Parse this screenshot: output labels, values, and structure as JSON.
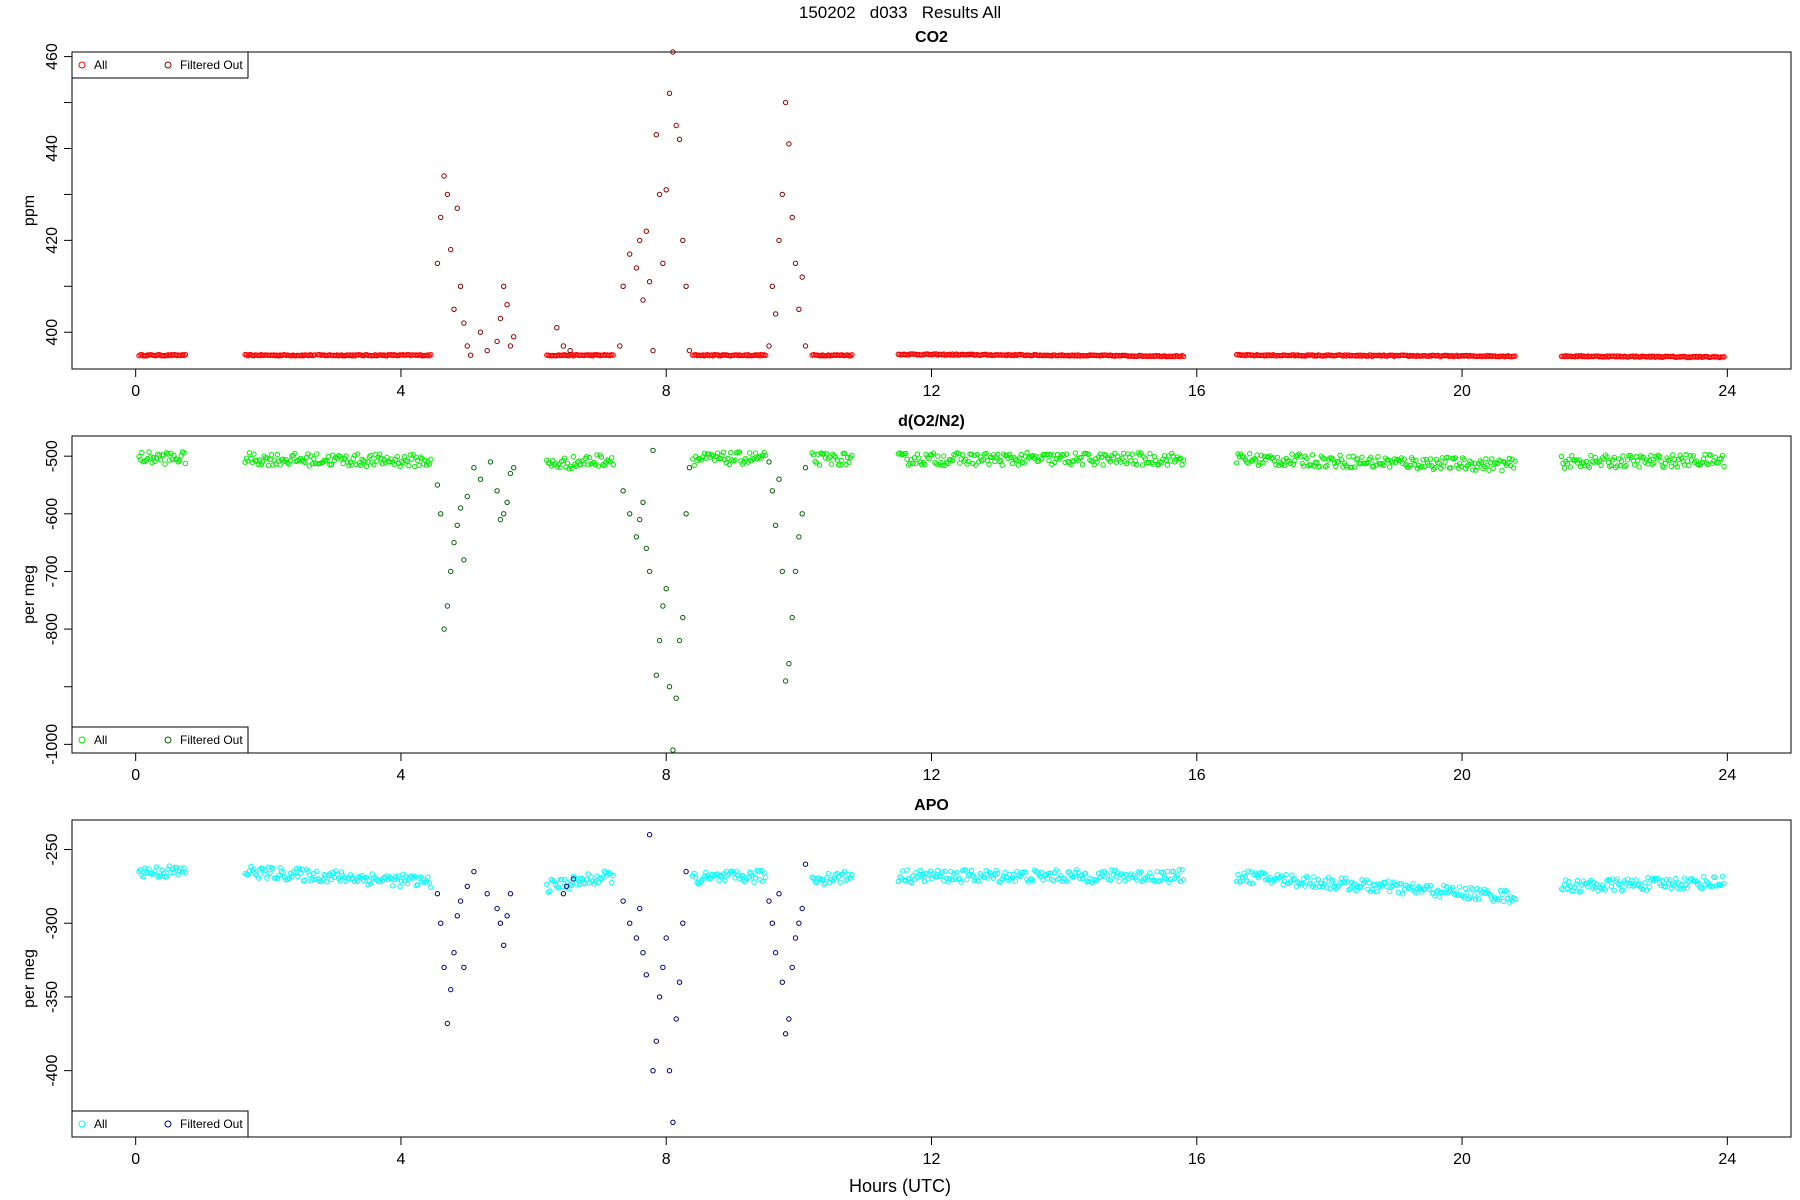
{
  "page_title": "150202   d033   Results All",
  "x_axis_label": "Hours (UTC)",
  "chart_data": [
    {
      "type": "scatter",
      "title": "CO2",
      "ylabel": "ppm",
      "xlabel": "Hours (UTC)",
      "xlim": [
        -0.96,
        24.96
      ],
      "ylim": [
        392,
        461
      ],
      "x_ticks": [
        0,
        4,
        8,
        12,
        16,
        20,
        24
      ],
      "y_ticks": [
        400,
        420,
        440,
        460
      ],
      "grid": false,
      "legend_position": "top-left",
      "legend": [
        {
          "label": "All",
          "color": "#ff0000"
        },
        {
          "label": "Filtered Out",
          "color": "#8b0000"
        }
      ],
      "baseline_segments": [
        {
          "start": 0.05,
          "end": 0.75,
          "y_start": 395.0,
          "y_end": 395.0
        },
        {
          "start": 1.65,
          "end": 2.7,
          "y_start": 395.0,
          "y_end": 395.0
        },
        {
          "start": 2.75,
          "end": 4.45,
          "y_start": 395.0,
          "y_end": 395.0
        },
        {
          "start": 6.2,
          "end": 7.2,
          "y_start": 395.0,
          "y_end": 395.0
        },
        {
          "start": 8.4,
          "end": 9.5,
          "y_start": 395.0,
          "y_end": 395.0
        },
        {
          "start": 10.2,
          "end": 10.8,
          "y_start": 395.0,
          "y_end": 395.0
        },
        {
          "start": 11.5,
          "end": 15.8,
          "y_start": 395.2,
          "y_end": 394.8
        },
        {
          "start": 16.6,
          "end": 20.8,
          "y_start": 395.0,
          "y_end": 394.8
        },
        {
          "start": 21.5,
          "end": 23.95,
          "y_start": 394.8,
          "y_end": 394.6
        }
      ],
      "filtered_points": [
        [
          4.55,
          415
        ],
        [
          4.6,
          425
        ],
        [
          4.65,
          434
        ],
        [
          4.7,
          430
        ],
        [
          4.75,
          418
        ],
        [
          4.8,
          405
        ],
        [
          4.85,
          427
        ],
        [
          4.9,
          410
        ],
        [
          4.95,
          402
        ],
        [
          5.0,
          397
        ],
        [
          5.05,
          395
        ],
        [
          5.2,
          400
        ],
        [
          5.3,
          396
        ],
        [
          5.45,
          398
        ],
        [
          5.5,
          403
        ],
        [
          5.55,
          410
        ],
        [
          5.6,
          406
        ],
        [
          5.65,
          397
        ],
        [
          5.7,
          399
        ],
        [
          6.35,
          401
        ],
        [
          6.45,
          397
        ],
        [
          6.55,
          396
        ],
        [
          7.3,
          397
        ],
        [
          7.35,
          410
        ],
        [
          7.45,
          417
        ],
        [
          7.55,
          414
        ],
        [
          7.6,
          420
        ],
        [
          7.65,
          407
        ],
        [
          7.7,
          422
        ],
        [
          7.75,
          411
        ],
        [
          7.8,
          396
        ],
        [
          7.85,
          443
        ],
        [
          7.9,
          430
        ],
        [
          7.95,
          415
        ],
        [
          8.0,
          431
        ],
        [
          8.05,
          452
        ],
        [
          8.1,
          461
        ],
        [
          8.15,
          445
        ],
        [
          8.2,
          442
        ],
        [
          8.25,
          420
        ],
        [
          8.3,
          410
        ],
        [
          8.35,
          396
        ],
        [
          9.55,
          397
        ],
        [
          9.6,
          410
        ],
        [
          9.65,
          404
        ],
        [
          9.7,
          420
        ],
        [
          9.75,
          430
        ],
        [
          9.8,
          450
        ],
        [
          9.85,
          441
        ],
        [
          9.9,
          425
        ],
        [
          9.95,
          415
        ],
        [
          10.0,
          405
        ],
        [
          10.05,
          412
        ],
        [
          10.1,
          397
        ]
      ]
    },
    {
      "type": "scatter",
      "title": "d(O2/N2)",
      "ylabel": "per meg",
      "xlabel": "Hours (UTC)",
      "xlim": [
        -0.96,
        24.96
      ],
      "ylim": [
        -1015,
        -465
      ],
      "x_ticks": [
        0,
        4,
        8,
        12,
        16,
        20,
        24
      ],
      "y_ticks": [
        -500,
        -600,
        -700,
        -800,
        -1000
      ],
      "y_minor_ticks": [
        -900
      ],
      "grid": false,
      "legend_position": "bottom-left",
      "legend": [
        {
          "label": "All",
          "color": "#00ee00"
        },
        {
          "label": "Filtered Out",
          "color": "#006400"
        }
      ],
      "baseline_segments": [
        {
          "start": 0.05,
          "end": 0.75,
          "y_start": -503,
          "y_end": -503
        },
        {
          "start": 1.65,
          "end": 4.45,
          "y_start": -505,
          "y_end": -508
        },
        {
          "start": 6.2,
          "end": 7.2,
          "y_start": -515,
          "y_end": -505
        },
        {
          "start": 8.4,
          "end": 9.5,
          "y_start": -505,
          "y_end": -503
        },
        {
          "start": 10.2,
          "end": 10.8,
          "y_start": -505,
          "y_end": -505
        },
        {
          "start": 11.5,
          "end": 15.8,
          "y_start": -505,
          "y_end": -505
        },
        {
          "start": 16.6,
          "end": 20.8,
          "y_start": -505,
          "y_end": -515
        },
        {
          "start": 21.5,
          "end": 23.95,
          "y_start": -510,
          "y_end": -507
        }
      ],
      "filtered_points": [
        [
          4.55,
          -550
        ],
        [
          4.6,
          -600
        ],
        [
          4.65,
          -800
        ],
        [
          4.7,
          -760
        ],
        [
          4.75,
          -700
        ],
        [
          4.8,
          -650
        ],
        [
          4.85,
          -620
        ],
        [
          4.9,
          -590
        ],
        [
          4.95,
          -680
        ],
        [
          5.0,
          -570
        ],
        [
          5.1,
          -520
        ],
        [
          5.2,
          -540
        ],
        [
          5.35,
          -510
        ],
        [
          5.45,
          -560
        ],
        [
          5.5,
          -610
        ],
        [
          5.55,
          -600
        ],
        [
          5.6,
          -580
        ],
        [
          5.65,
          -530
        ],
        [
          5.7,
          -520
        ],
        [
          7.35,
          -560
        ],
        [
          7.45,
          -600
        ],
        [
          7.55,
          -640
        ],
        [
          7.6,
          -610
        ],
        [
          7.65,
          -580
        ],
        [
          7.7,
          -660
        ],
        [
          7.75,
          -700
        ],
        [
          7.8,
          -490
        ],
        [
          7.85,
          -880
        ],
        [
          7.9,
          -820
        ],
        [
          7.95,
          -760
        ],
        [
          8.0,
          -730
        ],
        [
          8.05,
          -900
        ],
        [
          8.1,
          -1010
        ],
        [
          8.15,
          -920
        ],
        [
          8.2,
          -820
        ],
        [
          8.25,
          -780
        ],
        [
          8.3,
          -600
        ],
        [
          8.35,
          -520
        ],
        [
          9.55,
          -510
        ],
        [
          9.6,
          -560
        ],
        [
          9.65,
          -620
        ],
        [
          9.7,
          -540
        ],
        [
          9.75,
          -700
        ],
        [
          9.8,
          -890
        ],
        [
          9.85,
          -860
        ],
        [
          9.9,
          -780
        ],
        [
          9.95,
          -700
        ],
        [
          10.0,
          -640
        ],
        [
          10.05,
          -600
        ],
        [
          10.1,
          -520
        ]
      ]
    },
    {
      "type": "scatter",
      "title": "APO",
      "ylabel": "per meg",
      "xlabel": "Hours (UTC)",
      "xlim": [
        -0.96,
        24.96
      ],
      "ylim": [
        -445,
        -230
      ],
      "x_ticks": [
        0,
        4,
        8,
        12,
        16,
        20,
        24
      ],
      "y_ticks": [
        -250,
        -300,
        -350,
        -400
      ],
      "grid": false,
      "legend_position": "bottom-left",
      "legend": [
        {
          "label": "All",
          "color": "#00ffff"
        },
        {
          "label": "Filtered Out",
          "color": "#000080"
        }
      ],
      "baseline_segments": [
        {
          "start": 0.05,
          "end": 0.75,
          "y_start": -265,
          "y_end": -265
        },
        {
          "start": 1.65,
          "end": 4.45,
          "y_start": -265,
          "y_end": -272
        },
        {
          "start": 6.2,
          "end": 7.2,
          "y_start": -275,
          "y_end": -268
        },
        {
          "start": 8.4,
          "end": 9.5,
          "y_start": -270,
          "y_end": -268
        },
        {
          "start": 10.2,
          "end": 10.8,
          "y_start": -270,
          "y_end": -268
        },
        {
          "start": 11.5,
          "end": 15.8,
          "y_start": -268,
          "y_end": -268
        },
        {
          "start": 16.6,
          "end": 20.8,
          "y_start": -268,
          "y_end": -282
        },
        {
          "start": 21.5,
          "end": 23.95,
          "y_start": -275,
          "y_end": -272
        }
      ],
      "filtered_points": [
        [
          4.55,
          -280
        ],
        [
          4.6,
          -300
        ],
        [
          4.65,
          -330
        ],
        [
          4.7,
          -368
        ],
        [
          4.75,
          -345
        ],
        [
          4.8,
          -320
        ],
        [
          4.85,
          -295
        ],
        [
          4.9,
          -285
        ],
        [
          4.95,
          -330
        ],
        [
          5.0,
          -275
        ],
        [
          5.1,
          -265
        ],
        [
          5.3,
          -280
        ],
        [
          5.45,
          -290
        ],
        [
          5.5,
          -300
        ],
        [
          5.55,
          -315
        ],
        [
          5.6,
          -295
        ],
        [
          5.65,
          -280
        ],
        [
          6.45,
          -280
        ],
        [
          6.5,
          -275
        ],
        [
          6.6,
          -270
        ],
        [
          7.35,
          -285
        ],
        [
          7.45,
          -300
        ],
        [
          7.55,
          -310
        ],
        [
          7.6,
          -290
        ],
        [
          7.65,
          -320
        ],
        [
          7.7,
          -335
        ],
        [
          7.75,
          -240
        ],
        [
          7.8,
          -400
        ],
        [
          7.85,
          -380
        ],
        [
          7.9,
          -350
        ],
        [
          7.95,
          -330
        ],
        [
          8.0,
          -310
        ],
        [
          8.05,
          -400
        ],
        [
          8.1,
          -435
        ],
        [
          8.15,
          -365
        ],
        [
          8.2,
          -340
        ],
        [
          8.25,
          -300
        ],
        [
          8.3,
          -265
        ],
        [
          9.55,
          -285
        ],
        [
          9.6,
          -300
        ],
        [
          9.65,
          -320
        ],
        [
          9.7,
          -280
        ],
        [
          9.75,
          -340
        ],
        [
          9.8,
          -375
        ],
        [
          9.85,
          -365
        ],
        [
          9.9,
          -330
        ],
        [
          9.95,
          -310
        ],
        [
          10.0,
          -300
        ],
        [
          10.05,
          -290
        ],
        [
          10.1,
          -260
        ]
      ]
    }
  ]
}
